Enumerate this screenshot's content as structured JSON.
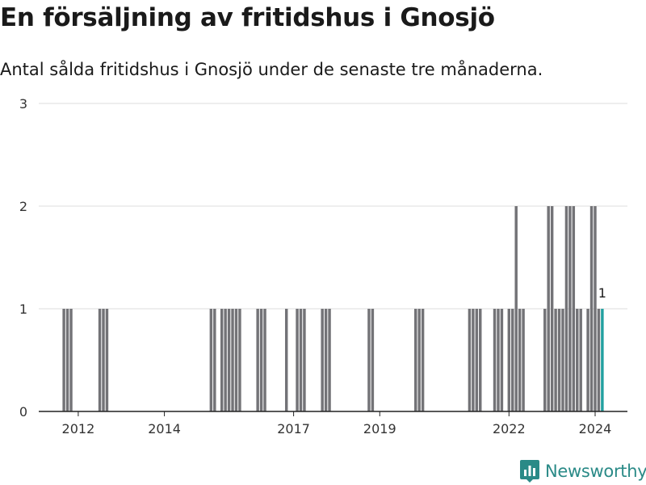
{
  "title": "En försäljning av fritidshus i Gnosjö",
  "subtitle": "Antal sålda fritidshus i Gnosjö under de senaste tre månaderna.",
  "brand": "Newsworthy",
  "colors": {
    "bar": "#737377",
    "highlight": "#22a0a0",
    "grid": "#dddddd",
    "axis": "#222222",
    "brand": "#2a8a87"
  },
  "chart_data": {
    "type": "bar",
    "title": "En försäljning av fritidshus i Gnosjö",
    "subtitle": "Antal sålda fritidshus i Gnosjö under de senaste tre månaderna.",
    "xlabel": "",
    "ylabel": "",
    "ylim": [
      0,
      3
    ],
    "yticks": [
      0,
      1,
      2,
      3
    ],
    "xlim": [
      "2011-08",
      "2025-04"
    ],
    "xticks": [
      "2012",
      "2014",
      "2017",
      "2019",
      "2022",
      "2024"
    ],
    "grid": true,
    "series": [
      {
        "x": [
          "2012-03",
          "2012-04",
          "2012-05",
          "2013-01",
          "2013-02",
          "2013-03",
          "2015-08",
          "2015-09",
          "2015-11",
          "2015-12",
          "2016-01",
          "2016-02",
          "2016-03",
          "2016-04",
          "2016-09",
          "2016-10",
          "2016-11",
          "2017-05",
          "2017-08",
          "2017-09",
          "2017-10",
          "2018-03",
          "2018-04",
          "2018-05",
          "2019-04",
          "2019-05",
          "2020-05",
          "2020-06",
          "2020-07",
          "2021-08",
          "2021-09",
          "2021-10",
          "2021-11",
          "2022-03",
          "2022-04",
          "2022-05",
          "2022-07",
          "2022-08",
          "2022-09",
          "2022-10",
          "2022-11",
          "2023-05",
          "2023-06",
          "2023-07",
          "2023-08",
          "2023-09",
          "2023-10",
          "2023-11",
          "2023-12",
          "2024-01",
          "2024-02",
          "2024-03",
          "2024-05",
          "2024-06",
          "2024-07",
          "2024-08",
          "2024-09"
        ],
        "values": [
          1,
          1,
          1,
          1,
          1,
          1,
          1,
          1,
          1,
          1,
          1,
          1,
          1,
          1,
          1,
          1,
          1,
          1,
          1,
          1,
          1,
          1,
          1,
          1,
          1,
          1,
          1,
          1,
          1,
          1,
          1,
          1,
          1,
          1,
          1,
          1,
          1,
          1,
          2,
          1,
          1,
          1,
          2,
          2,
          1,
          1,
          1,
          2,
          2,
          2,
          1,
          1,
          1,
          2,
          2,
          1,
          1
        ]
      }
    ],
    "highlight": {
      "x": "2024-09",
      "value": 1,
      "label": "1"
    }
  }
}
